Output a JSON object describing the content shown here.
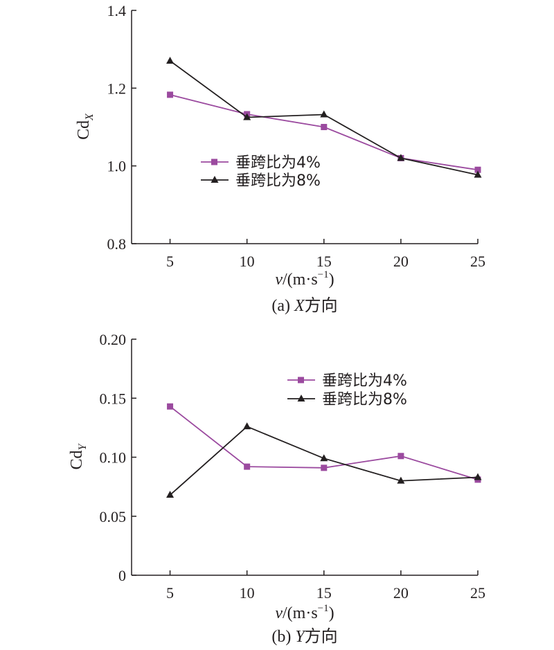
{
  "chart_data": [
    {
      "type": "line",
      "caption_prefix": "(a) ",
      "caption_axis": "X",
      "caption_suffix": "方向",
      "ylabel_main": "Cd",
      "ylabel_sub": "X",
      "xlabel_var": "v",
      "xlabel_units": "/(m·s",
      "xlabel_exp": "−1",
      "xlabel_close": ")",
      "x": [
        5,
        10,
        15,
        20,
        25
      ],
      "x_ticks": [
        "5",
        "10",
        "15",
        "20",
        "25"
      ],
      "xlim": [
        2.5,
        25
      ],
      "ylim": [
        0.8,
        1.4
      ],
      "y_ticks": [
        0.8,
        1.0,
        1.2,
        1.4
      ],
      "y_tick_labels": [
        "0.8",
        "1.0",
        "1.2",
        "1.4"
      ],
      "legend_position": "center",
      "grid": false,
      "series": [
        {
          "name": "垂跨比为4%",
          "values": [
            1.183,
            1.133,
            1.1,
            1.02,
            0.99
          ],
          "color": "#9b4a9f",
          "marker": "square"
        },
        {
          "name": "垂跨比为8%",
          "values": [
            1.27,
            1.125,
            1.132,
            1.02,
            0.977
          ],
          "color": "#231f20",
          "marker": "triangle"
        }
      ]
    },
    {
      "type": "line",
      "caption_prefix": "(b) ",
      "caption_axis": "Y",
      "caption_suffix": "方向",
      "ylabel_main": "Cd",
      "ylabel_sub": "Y",
      "xlabel_var": "v",
      "xlabel_units": "/(m·s",
      "xlabel_exp": "−1",
      "xlabel_close": ")",
      "x": [
        5,
        10,
        15,
        20,
        25
      ],
      "x_ticks": [
        "5",
        "10",
        "15",
        "20",
        "25"
      ],
      "xlim": [
        2.5,
        25
      ],
      "ylim": [
        0,
        0.2
      ],
      "y_ticks": [
        0,
        0.05,
        0.1,
        0.15,
        0.2
      ],
      "y_tick_labels": [
        "0",
        "0.05",
        "0.10",
        "0.15",
        "0.20"
      ],
      "legend_position": "top-right",
      "grid": false,
      "series": [
        {
          "name": "垂跨比为4%",
          "values": [
            0.143,
            0.092,
            0.091,
            0.101,
            0.081
          ],
          "color": "#9b4a9f",
          "marker": "square"
        },
        {
          "name": "垂跨比为8%",
          "values": [
            0.068,
            0.126,
            0.099,
            0.08,
            0.083
          ],
          "color": "#231f20",
          "marker": "triangle"
        }
      ]
    }
  ]
}
